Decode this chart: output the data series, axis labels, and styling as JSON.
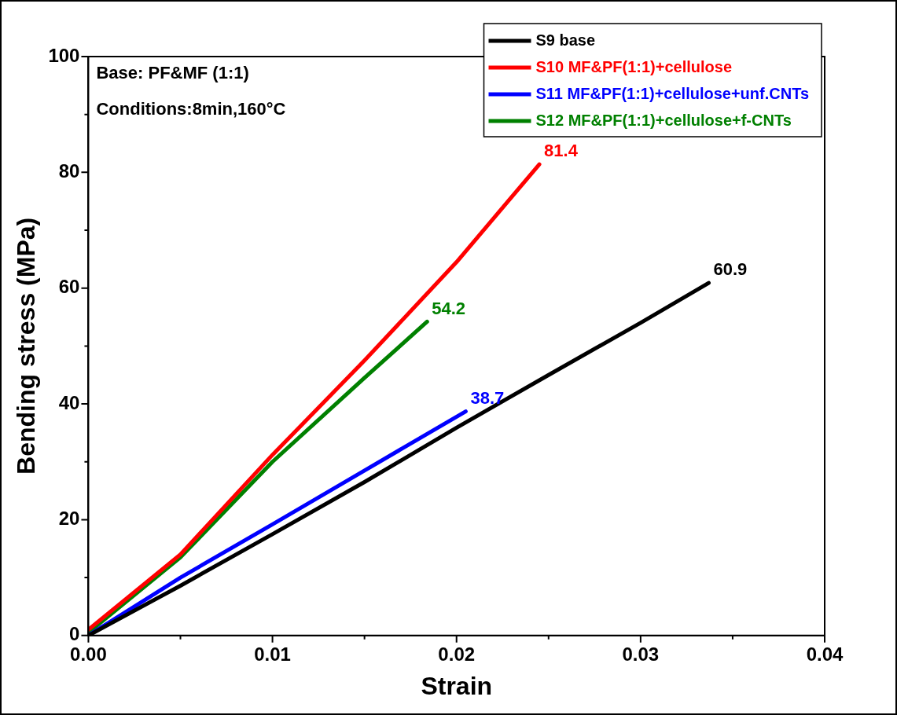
{
  "chart_data": {
    "type": "line",
    "xlabel": "Strain",
    "ylabel": "Bending stress (MPa)",
    "annotations": [
      "Base: PF&MF (1:1)",
      "Conditions:8min,160°C"
    ],
    "xlim": [
      0,
      0.04
    ],
    "xticks": [
      {
        "value": 0,
        "label": "0.00"
      },
      {
        "value": 0.005,
        "label": null
      },
      0.01,
      {
        "value": 0.015,
        "label": null
      },
      0.02,
      {
        "value": 0.025,
        "label": null
      },
      0.03,
      {
        "value": 0.035,
        "label": null
      },
      0.04
    ],
    "ylim": [
      0,
      100
    ],
    "yticks": [
      0,
      {
        "value": 10,
        "label": null
      },
      20,
      {
        "value": 30,
        "label": null
      },
      40,
      {
        "value": 50,
        "label": null
      },
      60,
      {
        "value": 70,
        "label": null
      },
      80,
      {
        "value": 90,
        "label": null
      },
      100
    ],
    "legend": "top right",
    "grid": false,
    "marker": "none",
    "line_style": "solid",
    "series": [
      {
        "name": "S9 base",
        "color": "#000000",
        "x": [
          0,
          0.005,
          0.01,
          0.015,
          0.02,
          0.025,
          0.03,
          0.0337
        ],
        "values": [
          0,
          8.6,
          17.5,
          26.5,
          35.9,
          45,
          54,
          60.9
        ],
        "value_labels": [
          null,
          null,
          null,
          null,
          null,
          null,
          null,
          "60.9"
        ]
      },
      {
        "name": "S10 MF&PF(1:1)+cellulose",
        "color": "#ff0000",
        "x": [
          0,
          0.005,
          0.01,
          0.015,
          0.02,
          0.0245
        ],
        "values": [
          1,
          14,
          31.2,
          47.5,
          64.5,
          81.4
        ],
        "value_labels": [
          null,
          null,
          null,
          null,
          null,
          "81.4"
        ]
      },
      {
        "name": "S11 MF&PF(1:1)+cellulose+unf.CNTs",
        "color": "#0000ff",
        "x": [
          0,
          0.005,
          0.01,
          0.015,
          0.0205
        ],
        "values": [
          0,
          10,
          19.2,
          28.5,
          38.7
        ],
        "value_labels": [
          null,
          null,
          null,
          null,
          "38.7"
        ]
      },
      {
        "name": "S12 MF&PF(1:1)+cellulose+f-CNTs",
        "color": "#008000",
        "x": [
          0,
          0.005,
          0.01,
          0.015,
          0.0184
        ],
        "values": [
          0.5,
          13.5,
          30,
          44.5,
          54.2
        ],
        "value_labels": [
          null,
          null,
          null,
          null,
          "54.2"
        ]
      }
    ]
  }
}
